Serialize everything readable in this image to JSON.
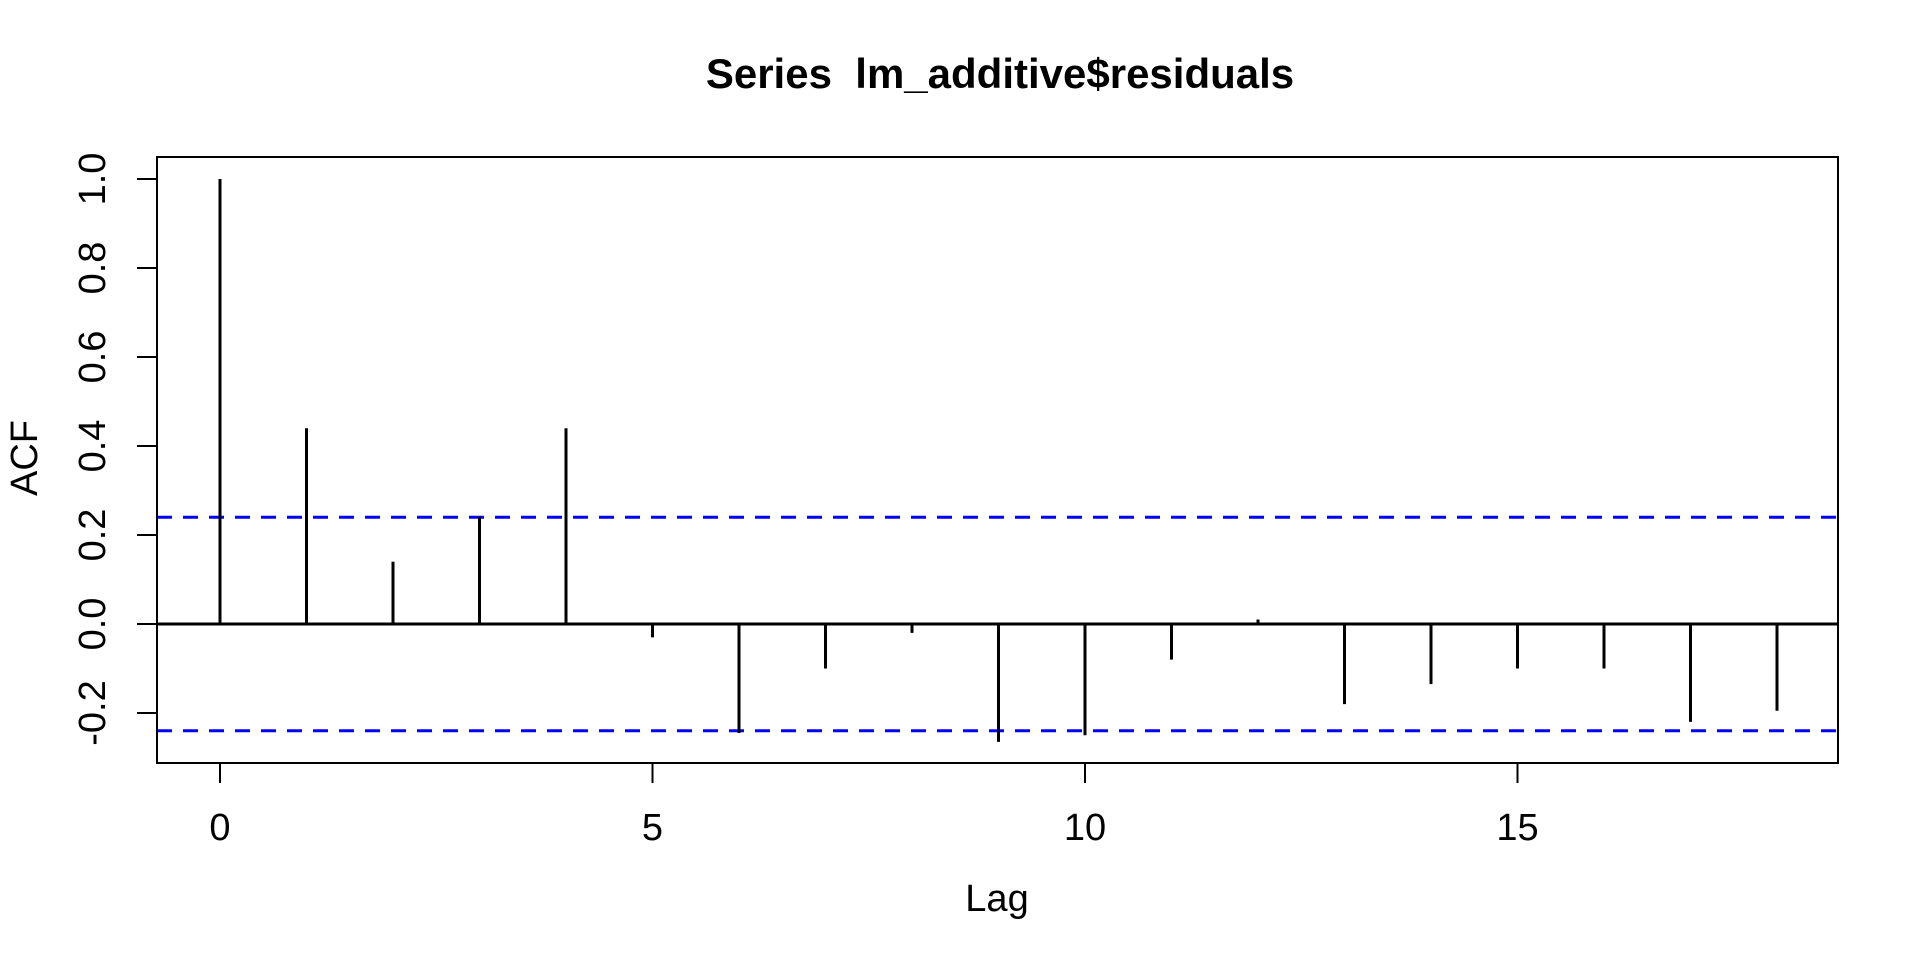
{
  "chart_data": {
    "type": "bar",
    "subtype": "acf-stem-plot",
    "title": "Series  lm_additive$residuals",
    "xlabel": "Lag",
    "ylabel": "ACF",
    "x": [
      0,
      1,
      2,
      3,
      4,
      5,
      6,
      7,
      8,
      9,
      10,
      11,
      12,
      13,
      14,
      15,
      16,
      17,
      18
    ],
    "acf": [
      1.0,
      0.44,
      0.14,
      0.24,
      0.44,
      -0.03,
      -0.245,
      -0.1,
      -0.02,
      -0.265,
      -0.25,
      -0.08,
      0.01,
      -0.18,
      -0.135,
      -0.1,
      -0.1,
      -0.22,
      -0.195
    ],
    "confidence_bounds": [
      0.24,
      -0.24
    ],
    "x_ticks": [
      {
        "value": 0,
        "label": "0"
      },
      {
        "value": 5,
        "label": "5"
      },
      {
        "value": 10,
        "label": "10"
      },
      {
        "value": 15,
        "label": "15"
      }
    ],
    "y_ticks": [
      {
        "value": 1.0,
        "label": "1.0"
      },
      {
        "value": 0.8,
        "label": "0.8"
      },
      {
        "value": 0.6,
        "label": "0.6"
      },
      {
        "value": 0.4,
        "label": "0.4"
      },
      {
        "value": 0.2,
        "label": "0.2"
      },
      {
        "value": 0.0,
        "label": "0.0"
      },
      {
        "value": -0.2,
        "label": "-0.2"
      }
    ],
    "xlim": [
      -0.72,
      18.72
    ],
    "ylim": [
      -0.31,
      1.05
    ],
    "grid": false,
    "legend_position": "none",
    "colors": {
      "bars": "#000000",
      "confidence": "#0000FF",
      "border": "#000000",
      "background": "#FFFFFF"
    }
  }
}
